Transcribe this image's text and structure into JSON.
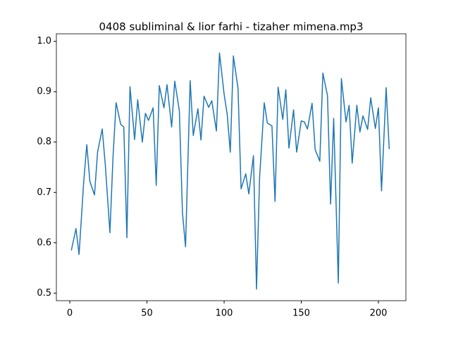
{
  "chart_data": {
    "type": "line",
    "title": "0408 subliminal & lior farhi - tizaher mimena.mp3",
    "x": [
      1,
      4,
      6,
      9,
      11,
      13,
      16,
      18,
      21,
      23,
      26,
      28,
      30,
      33,
      35,
      37,
      39,
      42,
      44,
      47,
      49,
      51,
      54,
      56,
      58,
      61,
      63,
      66,
      68,
      71,
      73,
      75,
      78,
      80,
      83,
      85,
      87,
      90,
      92,
      95,
      97,
      100,
      102,
      104,
      106,
      109,
      111,
      114,
      116,
      119,
      121,
      123,
      126,
      128,
      131,
      133,
      135,
      138,
      140,
      142,
      145,
      147,
      150,
      152,
      154,
      157,
      159,
      162,
      164,
      167,
      169,
      171,
      174,
      176,
      179,
      181,
      183,
      186,
      188,
      190,
      193,
      195,
      198,
      200,
      202,
      205,
      207
    ],
    "series": [
      {
        "color": "#1f77b4",
        "values": [
          0.585,
          0.628,
          0.577,
          0.72,
          0.795,
          0.722,
          0.695,
          0.78,
          0.826,
          0.755,
          0.62,
          0.77,
          0.878,
          0.835,
          0.83,
          0.61,
          0.91,
          0.805,
          0.884,
          0.8,
          0.857,
          0.843,
          0.868,
          0.714,
          0.912,
          0.868,
          0.914,
          0.83,
          0.921,
          0.862,
          0.66,
          0.592,
          0.922,
          0.813,
          0.866,
          0.804,
          0.891,
          0.869,
          0.882,
          0.822,
          0.977,
          0.895,
          0.855,
          0.78,
          0.971,
          0.907,
          0.707,
          0.737,
          0.697,
          0.773,
          0.508,
          0.73,
          0.878,
          0.838,
          0.832,
          0.682,
          0.909,
          0.845,
          0.904,
          0.788,
          0.864,
          0.78,
          0.842,
          0.84,
          0.826,
          0.877,
          0.785,
          0.762,
          0.937,
          0.892,
          0.677,
          0.847,
          0.52,
          0.926,
          0.84,
          0.873,
          0.758,
          0.873,
          0.82,
          0.852,
          0.825,
          0.888,
          0.827,
          0.868,
          0.703,
          0.908,
          0.786
        ]
      }
    ],
    "xlim": [
      -8.7,
      217.8
    ],
    "xticks": [
      0,
      50,
      100,
      150,
      200
    ],
    "ylim": [
      0.485,
      1.015
    ],
    "yticks": [
      0.5,
      0.6,
      0.7,
      0.8,
      0.9,
      {
        "value": 1.0,
        "label": "1.0"
      }
    ]
  }
}
